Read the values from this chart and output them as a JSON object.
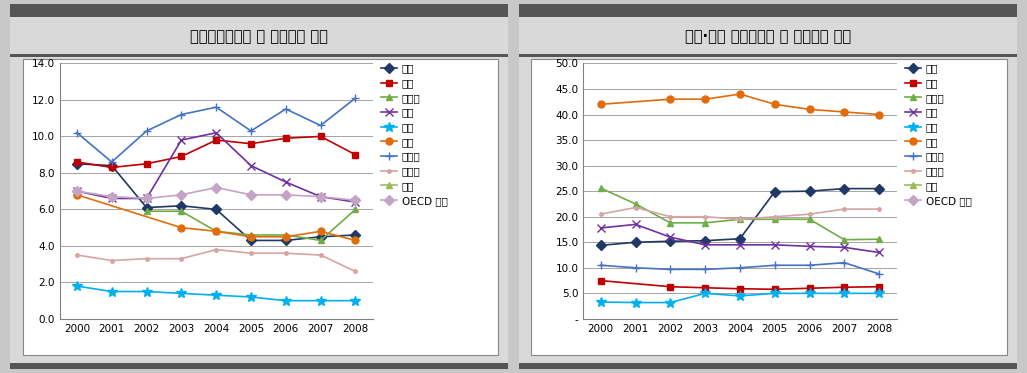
{
  "years": [
    2000,
    2001,
    2002,
    2003,
    2004,
    2005,
    2006,
    2007,
    2008
  ],
  "chart1": {
    "title": "기업연구개발비 중 정부재원 비중",
    "ylim": [
      0,
      14.0
    ],
    "ytick_labels": [
      "0.0",
      "2.0",
      "4.0",
      "6.0",
      "8.0",
      "10.0",
      "12.0",
      "14.0"
    ],
    "ytick_vals": [
      0.0,
      2.0,
      4.0,
      6.0,
      8.0,
      10.0,
      12.0,
      14.0
    ],
    "series": {
      "독일": {
        "color": "#1F3864",
        "marker": "D",
        "data": [
          8.5,
          8.4,
          6.1,
          6.2,
          6.0,
          4.3,
          4.3,
          4.5,
          4.6
        ]
      },
      "미국": {
        "color": "#C00000",
        "marker": "s",
        "data": [
          8.6,
          8.3,
          8.5,
          8.9,
          9.8,
          9.6,
          9.9,
          10.0,
          9.0
        ]
      },
      "스웨덴": {
        "color": "#70AD47",
        "marker": "^",
        "data": [
          null,
          null,
          5.9,
          5.9,
          4.8,
          4.6,
          4.6,
          4.3,
          6.0
        ]
      },
      "영국": {
        "color": "#7030A0",
        "marker": "x",
        "data": [
          7.0,
          6.6,
          6.6,
          9.8,
          10.2,
          8.4,
          7.5,
          6.7,
          6.4
        ]
      },
      "일본": {
        "color": "#00B0F0",
        "marker": "*",
        "data": [
          1.8,
          1.5,
          1.5,
          1.4,
          1.3,
          1.2,
          1.0,
          1.0,
          1.0
        ]
      },
      "중국": {
        "color": "#E36C0A",
        "marker": "o",
        "data": [
          6.8,
          null,
          null,
          5.0,
          4.8,
          4.5,
          4.5,
          4.8,
          4.3
        ]
      },
      "프랑스": {
        "color": "#4472C4",
        "marker": "+",
        "data": [
          10.2,
          8.6,
          10.3,
          11.2,
          11.6,
          10.3,
          11.5,
          10.6,
          12.1
        ]
      },
      "핀란드": {
        "color": "#D8A3A3",
        "marker": ".",
        "data": [
          3.5,
          3.2,
          3.3,
          3.3,
          3.8,
          3.6,
          3.6,
          3.5,
          2.6
        ]
      },
      "한국": {
        "color": "#9BBB59",
        "marker": "^",
        "data": [
          null,
          null,
          null,
          null,
          null,
          null,
          null,
          null,
          null
        ]
      },
      "OECD 평균": {
        "color": "#C4A3C4",
        "marker": "D",
        "data": [
          7.0,
          6.7,
          6.6,
          6.8,
          7.2,
          6.8,
          6.8,
          6.7,
          6.5
        ]
      }
    }
  },
  "chart2": {
    "title": "정부·대학 연구개발비 중 기업재원 비중",
    "ylim": [
      0,
      50.0
    ],
    "ytick_labels": [
      "-",
      "5.0",
      "10.0",
      "15.0",
      "20.0",
      "25.0",
      "30.0",
      "35.0",
      "40.0",
      "45.0",
      "50.0"
    ],
    "ytick_vals": [
      0,
      5.0,
      10.0,
      15.0,
      20.0,
      25.0,
      30.0,
      35.0,
      40.0,
      45.0,
      50.0
    ],
    "series": {
      "독일": {
        "color": "#1F3864",
        "marker": "D",
        "data": [
          14.4,
          15.0,
          15.2,
          15.3,
          15.7,
          24.9,
          25.0,
          25.5,
          25.5
        ]
      },
      "미국": {
        "color": "#C00000",
        "marker": "s",
        "data": [
          7.5,
          null,
          6.3,
          6.1,
          5.9,
          5.8,
          6.0,
          6.2,
          6.3
        ]
      },
      "스웨덴": {
        "color": "#70AD47",
        "marker": "^",
        "data": [
          25.6,
          22.5,
          18.8,
          18.8,
          19.5,
          19.5,
          19.5,
          15.5,
          15.6
        ]
      },
      "영국": {
        "color": "#7030A0",
        "marker": "x",
        "data": [
          17.8,
          18.5,
          16.0,
          14.5,
          14.5,
          14.5,
          14.2,
          14.0,
          13.0
        ]
      },
      "일본": {
        "color": "#00B0F0",
        "marker": "*",
        "data": [
          3.3,
          3.2,
          3.2,
          5.0,
          4.5,
          5.0,
          5.0,
          5.0,
          5.0
        ]
      },
      "중국": {
        "color": "#E36C0A",
        "marker": "o",
        "data": [
          42.0,
          null,
          43.0,
          43.0,
          44.0,
          42.0,
          41.0,
          40.5,
          40.0
        ]
      },
      "프랑스": {
        "color": "#4472C4",
        "marker": "+",
        "data": [
          10.5,
          10.0,
          9.7,
          9.7,
          10.0,
          10.5,
          10.5,
          11.0,
          8.8
        ]
      },
      "핀란드": {
        "color": "#D8A3A3",
        "marker": ".",
        "data": [
          20.5,
          21.8,
          20.0,
          20.0,
          19.5,
          20.0,
          20.5,
          21.5,
          21.5
        ]
      },
      "한국": {
        "color": "#9BBB59",
        "marker": "^",
        "data": [
          null,
          null,
          null,
          null,
          null,
          null,
          null,
          null,
          null
        ]
      },
      "OECD 평균": {
        "color": "#C4A3C4",
        "marker": "D",
        "data": [
          null,
          null,
          null,
          null,
          null,
          null,
          null,
          null,
          null
        ]
      }
    }
  },
  "legend_order": [
    "독일",
    "미국",
    "스웨덴",
    "영국",
    "일본",
    "중국",
    "프랑스",
    "핀란드",
    "한국",
    "OECD 평균"
  ],
  "title_bg_color": "#D9D9D9",
  "outer_bg_color": "#C8C8C8"
}
